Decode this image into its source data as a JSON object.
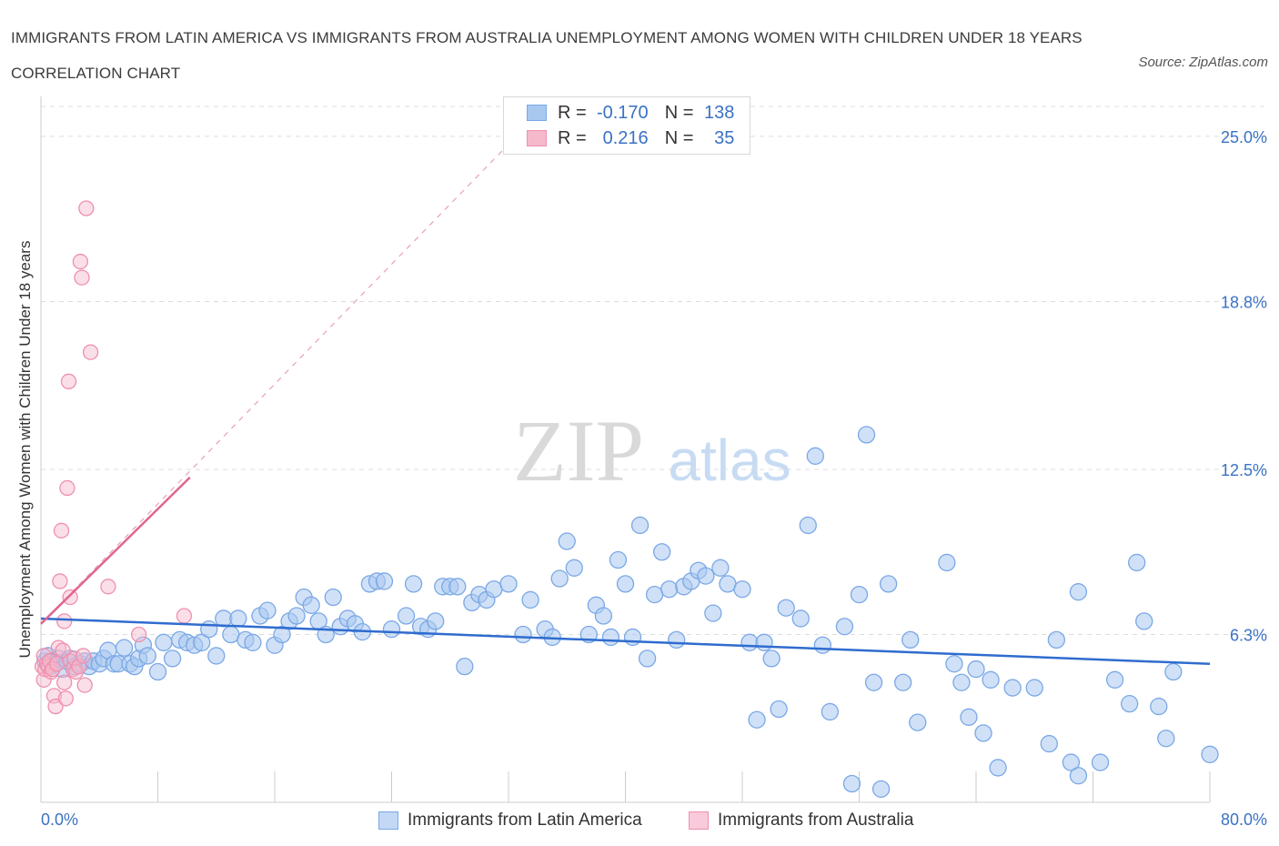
{
  "title": "IMMIGRANTS FROM LATIN AMERICA VS IMMIGRANTS FROM AUSTRALIA UNEMPLOYMENT AMONG WOMEN WITH CHILDREN UNDER 18 YEARS CORRELATION CHART",
  "source": "Source: ZipAtlas.com",
  "watermark": {
    "zip": "ZIP",
    "atlas": "atlas"
  },
  "legend": {
    "r_label": "R =",
    "n_label": "N =",
    "series": [
      {
        "r": "-0.170",
        "n": "138"
      },
      {
        "r": "0.216",
        "n": "35"
      }
    ]
  },
  "colors": {
    "blue_fill": "#a9c8f0",
    "blue_stroke": "#7aa8e6",
    "blue_line": "#2f6ccf",
    "pink_fill": "#f6b8cb",
    "pink_stroke": "#ee90ae",
    "pink_line": "#e0668f",
    "grid": "#dcdcdc",
    "axis_text": "#3a72c4"
  },
  "chart_data": {
    "type": "scatter",
    "xlabel": "",
    "ylabel": "Unemployment Among Women with Children Under 18 years",
    "xlim": [
      0,
      80
    ],
    "ylim": [
      0,
      26.5
    ],
    "x_tick_labels": [
      "0.0%",
      "80.0%"
    ],
    "y_ticks": [
      6.3,
      12.5,
      18.8,
      25.0
    ],
    "y_tick_labels": [
      "6.3%",
      "12.5%",
      "18.8%",
      "25.0%"
    ],
    "grid": true,
    "legend_position": "bottom",
    "series": [
      {
        "name": "Immigrants from Latin America",
        "color": "#a9c8f0",
        "trend": {
          "x": [
            0,
            80
          ],
          "y": [
            6.9,
            5.2
          ]
        },
        "points": [
          [
            0.3,
            5.3
          ],
          [
            0.5,
            5.5
          ],
          [
            0.6,
            5.1
          ],
          [
            0.8,
            5.3
          ],
          [
            1.0,
            5.2
          ],
          [
            1.2,
            5.4
          ],
          [
            1.5,
            5.0
          ],
          [
            1.8,
            5.3
          ],
          [
            2.0,
            5.4
          ],
          [
            2.3,
            5.1
          ],
          [
            2.7,
            5.2
          ],
          [
            3.0,
            5.3
          ],
          [
            3.3,
            5.1
          ],
          [
            3.6,
            5.3
          ],
          [
            4.0,
            5.2
          ],
          [
            4.3,
            5.4
          ],
          [
            4.6,
            5.7
          ],
          [
            5.0,
            5.2
          ],
          [
            5.3,
            5.2
          ],
          [
            5.7,
            5.8
          ],
          [
            6.1,
            5.2
          ],
          [
            6.4,
            5.1
          ],
          [
            6.7,
            5.4
          ],
          [
            7.0,
            5.9
          ],
          [
            7.3,
            5.5
          ],
          [
            8.0,
            4.9
          ],
          [
            8.4,
            6.0
          ],
          [
            9.0,
            5.4
          ],
          [
            9.5,
            6.1
          ],
          [
            10.0,
            6.0
          ],
          [
            10.5,
            5.9
          ],
          [
            11.0,
            6.0
          ],
          [
            11.5,
            6.5
          ],
          [
            12.0,
            5.5
          ],
          [
            12.5,
            6.9
          ],
          [
            13.0,
            6.3
          ],
          [
            13.5,
            6.9
          ],
          [
            14.0,
            6.1
          ],
          [
            14.5,
            6.0
          ],
          [
            15.0,
            7.0
          ],
          [
            15.5,
            7.2
          ],
          [
            16.0,
            5.9
          ],
          [
            16.5,
            6.3
          ],
          [
            17.0,
            6.8
          ],
          [
            17.5,
            7.0
          ],
          [
            18.0,
            7.7
          ],
          [
            18.5,
            7.4
          ],
          [
            19.0,
            6.8
          ],
          [
            19.5,
            6.3
          ],
          [
            20.0,
            7.7
          ],
          [
            20.5,
            6.6
          ],
          [
            21.0,
            6.9
          ],
          [
            21.5,
            6.7
          ],
          [
            22.0,
            6.4
          ],
          [
            22.5,
            8.2
          ],
          [
            23.0,
            8.3
          ],
          [
            23.5,
            8.3
          ],
          [
            24.0,
            6.5
          ],
          [
            25.0,
            7.0
          ],
          [
            25.5,
            8.2
          ],
          [
            26.0,
            6.6
          ],
          [
            26.5,
            6.5
          ],
          [
            27.0,
            6.8
          ],
          [
            27.5,
            8.1
          ],
          [
            28.0,
            8.1
          ],
          [
            28.5,
            8.1
          ],
          [
            29.0,
            5.1
          ],
          [
            29.5,
            7.5
          ],
          [
            30.0,
            7.8
          ],
          [
            30.5,
            7.6
          ],
          [
            31.0,
            8.0
          ],
          [
            32.0,
            8.2
          ],
          [
            33.0,
            6.3
          ],
          [
            33.5,
            7.6
          ],
          [
            34.5,
            6.5
          ],
          [
            35.0,
            6.2
          ],
          [
            35.5,
            8.4
          ],
          [
            36.0,
            9.8
          ],
          [
            36.5,
            8.8
          ],
          [
            37.5,
            6.3
          ],
          [
            38.0,
            7.4
          ],
          [
            38.5,
            7.0
          ],
          [
            39.0,
            6.2
          ],
          [
            39.5,
            9.1
          ],
          [
            40.0,
            8.2
          ],
          [
            40.5,
            6.2
          ],
          [
            41.0,
            10.4
          ],
          [
            41.5,
            5.4
          ],
          [
            42.0,
            7.8
          ],
          [
            42.5,
            9.4
          ],
          [
            43.0,
            8.0
          ],
          [
            43.5,
            6.1
          ],
          [
            44.0,
            8.1
          ],
          [
            44.5,
            8.3
          ],
          [
            45.0,
            8.7
          ],
          [
            45.5,
            8.5
          ],
          [
            46.0,
            7.1
          ],
          [
            46.5,
            8.8
          ],
          [
            47.0,
            8.2
          ],
          [
            48.0,
            8.0
          ],
          [
            48.5,
            6.0
          ],
          [
            49.0,
            3.1
          ],
          [
            49.5,
            6.0
          ],
          [
            50.0,
            5.4
          ],
          [
            50.5,
            3.5
          ],
          [
            51.0,
            7.3
          ],
          [
            52.0,
            6.9
          ],
          [
            52.5,
            10.4
          ],
          [
            53.0,
            13.0
          ],
          [
            53.5,
            5.9
          ],
          [
            54.0,
            3.4
          ],
          [
            55.0,
            6.6
          ],
          [
            55.5,
            0.7
          ],
          [
            56.0,
            7.8
          ],
          [
            56.5,
            13.8
          ],
          [
            57.0,
            4.5
          ],
          [
            57.5,
            0.5
          ],
          [
            58.0,
            8.2
          ],
          [
            59.0,
            4.5
          ],
          [
            59.5,
            6.1
          ],
          [
            60.0,
            3.0
          ],
          [
            62.0,
            9.0
          ],
          [
            62.5,
            5.2
          ],
          [
            63.0,
            4.5
          ],
          [
            63.5,
            3.2
          ],
          [
            64.0,
            5.0
          ],
          [
            64.5,
            2.6
          ],
          [
            65.0,
            4.6
          ],
          [
            65.5,
            1.3
          ],
          [
            66.5,
            4.3
          ],
          [
            68.0,
            4.3
          ],
          [
            69.0,
            2.2
          ],
          [
            69.5,
            6.1
          ],
          [
            70.5,
            1.5
          ],
          [
            71.0,
            7.9
          ],
          [
            71.0,
            1.0
          ],
          [
            72.5,
            1.5
          ],
          [
            73.5,
            4.6
          ],
          [
            74.5,
            3.7
          ],
          [
            75.0,
            9.0
          ],
          [
            75.5,
            6.8
          ],
          [
            76.5,
            3.6
          ],
          [
            77.0,
            2.4
          ],
          [
            77.5,
            4.9
          ],
          [
            80.0,
            1.8
          ]
        ]
      },
      {
        "name": "Immigrants from Australia",
        "color": "#f6b8cb",
        "trend": {
          "x": [
            0,
            10.2
          ],
          "y": [
            6.7,
            12.2
          ],
          "x_extended": [
            0,
            32
          ],
          "y_extended": [
            6.7,
            24.7
          ]
        },
        "points": [
          [
            0.1,
            5.1
          ],
          [
            0.2,
            5.5
          ],
          [
            0.2,
            4.6
          ],
          [
            0.3,
            5.0
          ],
          [
            0.4,
            5.2
          ],
          [
            0.5,
            5.1
          ],
          [
            0.6,
            5.3
          ],
          [
            0.7,
            4.9
          ],
          [
            0.8,
            5.0
          ],
          [
            0.9,
            4.0
          ],
          [
            1.0,
            3.6
          ],
          [
            1.1,
            5.2
          ],
          [
            1.2,
            5.8
          ],
          [
            1.3,
            8.3
          ],
          [
            1.4,
            10.2
          ],
          [
            1.5,
            5.7
          ],
          [
            1.6,
            4.5
          ],
          [
            1.6,
            6.8
          ],
          [
            1.7,
            3.9
          ],
          [
            1.8,
            11.8
          ],
          [
            1.9,
            15.8
          ],
          [
            2.0,
            7.7
          ],
          [
            2.0,
            5.3
          ],
          [
            2.2,
            5.0
          ],
          [
            2.3,
            5.4
          ],
          [
            2.4,
            4.9
          ],
          [
            2.6,
            5.1
          ],
          [
            2.7,
            20.3
          ],
          [
            2.8,
            19.7
          ],
          [
            2.9,
            5.5
          ],
          [
            3.0,
            4.4
          ],
          [
            3.1,
            22.3
          ],
          [
            3.4,
            16.9
          ],
          [
            4.6,
            8.1
          ],
          [
            6.7,
            6.3
          ],
          [
            9.8,
            7.0
          ]
        ]
      }
    ]
  }
}
